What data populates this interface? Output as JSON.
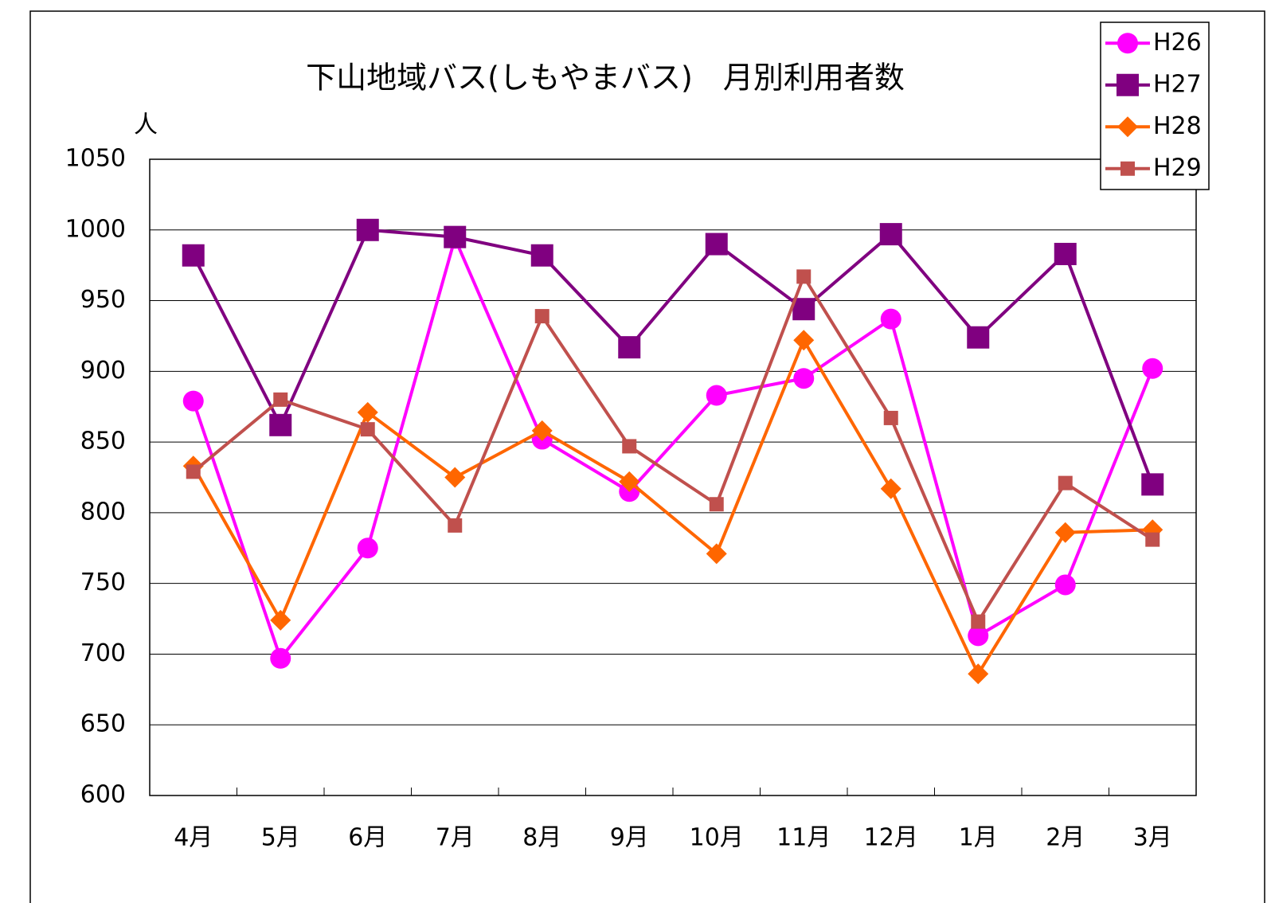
{
  "chart_data": {
    "type": "line",
    "title": "下山地域バス(しもやまバス)　月別利用者数",
    "y_label": "人",
    "categories": [
      "4月",
      "5月",
      "6月",
      "7月",
      "8月",
      "9月",
      "10月",
      "11月",
      "12月",
      "1月",
      "2月",
      "3月"
    ],
    "series": [
      {
        "name": "H26",
        "color": "#ff00ff",
        "marker": "circle",
        "values": [
          879,
          697,
          775,
          994,
          852,
          815,
          883,
          895,
          937,
          713,
          749,
          902
        ]
      },
      {
        "name": "H27",
        "color": "#800080",
        "marker": "square",
        "values": [
          982,
          862,
          1000,
          995,
          982,
          917,
          990,
          944,
          997,
          924,
          983,
          820
        ]
      },
      {
        "name": "H28",
        "color": "#ff6600",
        "marker": "diamond",
        "values": [
          833,
          724,
          871,
          825,
          858,
          822,
          771,
          922,
          817,
          686,
          786,
          788
        ]
      },
      {
        "name": "H29",
        "color": "#c0504d",
        "marker": "small-square",
        "values": [
          829,
          880,
          859,
          791,
          939,
          847,
          806,
          967,
          867,
          723,
          821,
          781
        ]
      }
    ],
    "ylim": [
      600,
      1050
    ],
    "yticks": [
      600,
      650,
      700,
      750,
      800,
      850,
      900,
      950,
      1000,
      1050
    ],
    "grid": true,
    "legend": "upper right"
  }
}
